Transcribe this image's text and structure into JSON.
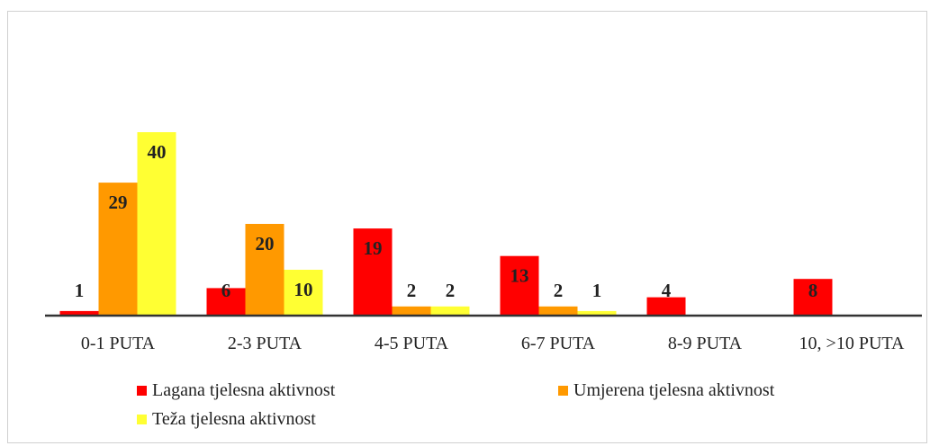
{
  "chart_data": {
    "type": "bar",
    "categories": [
      "0-1 PUTA",
      "2-3 PUTA",
      "4-5 PUTA",
      "6-7 PUTA",
      "8-9 PUTA",
      "10, >10 PUTA"
    ],
    "series": [
      {
        "name": "Lagana tjelesna aktivnost",
        "color": "#ff0000",
        "values": [
          1,
          6,
          19,
          13,
          4,
          8
        ]
      },
      {
        "name": "Umjerena tjelesna aktivnost",
        "color": "#ff9900",
        "values": [
          29,
          20,
          2,
          2,
          null,
          null
        ]
      },
      {
        "name": "Teža tjelesna aktivnost",
        "color": "#ffff33",
        "values": [
          40,
          10,
          2,
          1,
          null,
          null
        ]
      }
    ],
    "ylim": [
      0,
      60
    ],
    "grid": false
  }
}
